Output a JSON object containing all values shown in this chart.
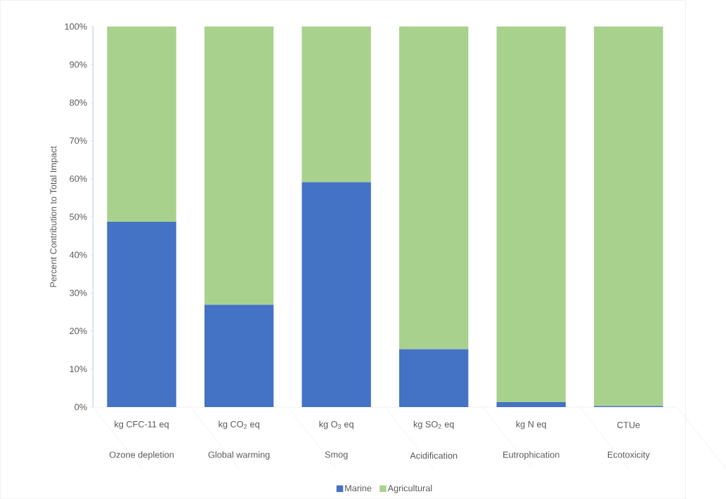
{
  "chart_data": {
    "type": "bar",
    "stacked": true,
    "ylabel": "Percent Contribution to Total Impact",
    "categories": [
      "Ozone depletion",
      "Global warming",
      "Smog",
      "Acidification",
      "Eutrophication",
      "Ecotoxicity"
    ],
    "annotations": [
      "kg CFC-11 eq",
      "kg CO$_{2}$ eq",
      "kg O$_{3}$ eq",
      "kg SO$_{2}$ eq",
      "kg N eq",
      "CTUe"
    ],
    "series": [
      {
        "name": "Marine",
        "color": "#4472c4",
        "values": [
          48.7,
          26.9,
          59.1,
          15.2,
          1.3,
          0.3
        ]
      },
      {
        "name": "Agricultural",
        "color": "#a9d18e",
        "values": [
          51.3,
          73.1,
          40.9,
          84.8,
          98.7,
          99.7
        ]
      }
    ],
    "ylim": [
      0,
      100
    ],
    "yticks": [
      {
        "value": 0,
        "label": "0%"
      },
      {
        "value": 10,
        "label": "10%"
      },
      {
        "value": 20,
        "label": "20%"
      },
      {
        "value": 30,
        "label": "30%"
      },
      {
        "value": 40,
        "label": "40%"
      },
      {
        "value": 50,
        "label": "50%"
      },
      {
        "value": 60,
        "label": "60%"
      },
      {
        "value": 70,
        "label": "70%"
      },
      {
        "value": 80,
        "label": "80%"
      },
      {
        "value": 90,
        "label": "90%"
      },
      {
        "value": 100,
        "label": "100%"
      }
    ],
    "legend": "bottom"
  }
}
